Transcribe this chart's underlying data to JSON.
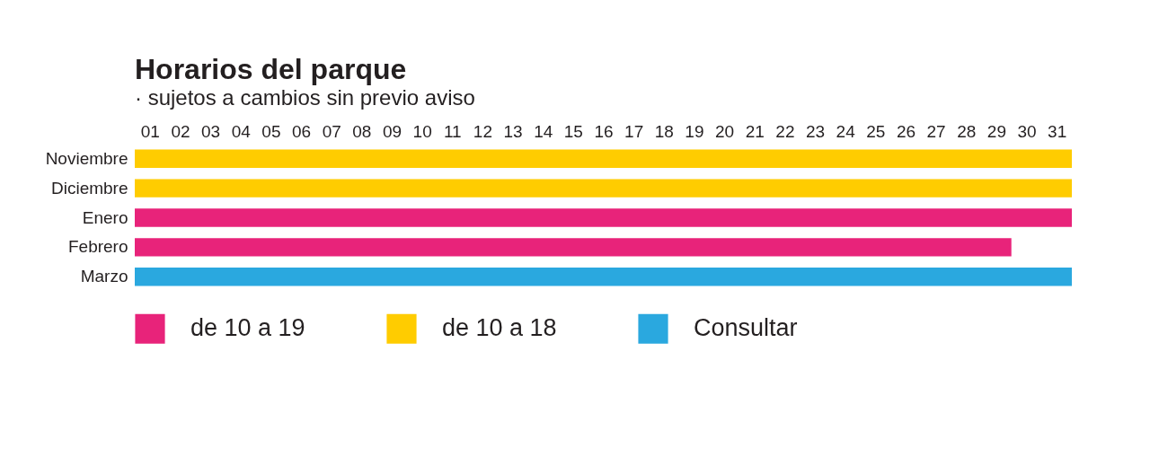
{
  "chart_data": {
    "type": "bar",
    "orientation": "horizontal",
    "title": "Horarios del parque",
    "subtitle": "· sujetos a cambios sin previo aviso",
    "categories": [
      "Noviembre",
      "Diciembre",
      "Enero",
      "Febrero",
      "Marzo"
    ],
    "series": [
      {
        "name": "de 10 a 19",
        "color": "#e8237a",
        "values": [
          null,
          null,
          31,
          29,
          null
        ]
      },
      {
        "name": "de 10 a 18",
        "color": "#ffcc00",
        "values": [
          31,
          31,
          null,
          null,
          null
        ]
      },
      {
        "name": "Consultar",
        "color": "#2aa8df",
        "values": [
          null,
          null,
          null,
          null,
          31
        ]
      }
    ],
    "xlim": [
      0,
      31
    ],
    "xticks": [
      {
        "value": 0.5,
        "label": "01"
      },
      {
        "value": 1.5,
        "label": "02"
      },
      {
        "value": 2.5,
        "label": "03"
      },
      {
        "value": 3.5,
        "label": "04"
      },
      {
        "value": 4.5,
        "label": "05"
      },
      {
        "value": 5.5,
        "label": "06"
      },
      {
        "value": 6.5,
        "label": "07"
      },
      {
        "value": 7.5,
        "label": "08"
      },
      {
        "value": 8.5,
        "label": "09"
      },
      {
        "value": 9.5,
        "label": "10"
      },
      {
        "value": 10.5,
        "label": "11"
      },
      {
        "value": 11.5,
        "label": "12"
      },
      {
        "value": 12.5,
        "label": "13"
      },
      {
        "value": 13.5,
        "label": "14"
      },
      {
        "value": 14.5,
        "label": "15"
      },
      {
        "value": 15.5,
        "label": "16"
      },
      {
        "value": 16.5,
        "label": "17"
      },
      {
        "value": 17.5,
        "label": "18"
      },
      {
        "value": 18.5,
        "label": "19"
      },
      {
        "value": 19.5,
        "label": "20"
      },
      {
        "value": 20.5,
        "label": "21"
      },
      {
        "value": 21.5,
        "label": "22"
      },
      {
        "value": 22.5,
        "label": "23"
      },
      {
        "value": 23.5,
        "label": "24"
      },
      {
        "value": 24.5,
        "label": "25"
      },
      {
        "value": 25.5,
        "label": "26"
      },
      {
        "value": 26.5,
        "label": "27"
      },
      {
        "value": 27.5,
        "label": "28"
      },
      {
        "value": 28.5,
        "label": "29"
      },
      {
        "value": 29.5,
        "label": "30"
      },
      {
        "value": 30.5,
        "label": "31"
      }
    ],
    "grid": false,
    "legend": "bottom left"
  }
}
